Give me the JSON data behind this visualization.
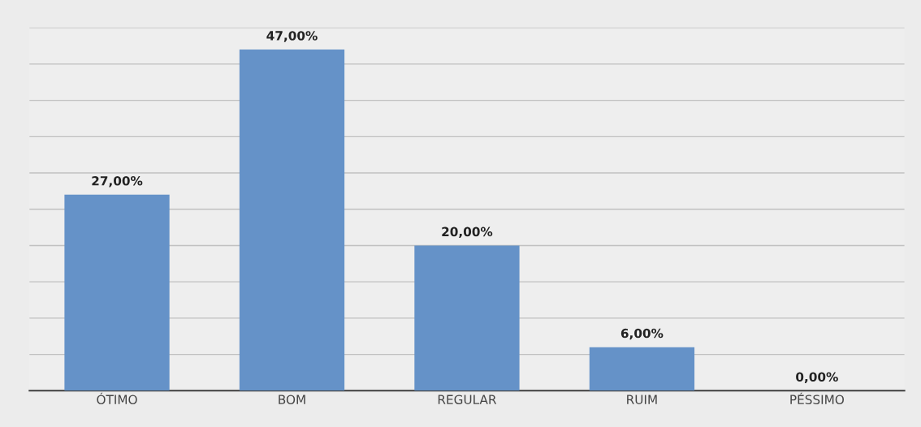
{
  "chart_data": {
    "type": "bar",
    "categories": [
      "ÓTIMO",
      "BOM",
      "REGULAR",
      "RUIM",
      "PÉSSIMO"
    ],
    "values": [
      27,
      47,
      20,
      6,
      0
    ],
    "value_labels": [
      "27,00%",
      "47,00%",
      "20,00%",
      "6,00%",
      "0,00%"
    ],
    "color": "#6592c8",
    "ylim": [
      0,
      50
    ],
    "yticks": [
      {
        "value": 0,
        "label": null
      },
      {
        "value": 5,
        "label": null
      },
      {
        "value": 10,
        "label": null
      },
      {
        "value": 15,
        "label": null
      },
      {
        "value": 20,
        "label": null
      },
      {
        "value": 25,
        "label": null
      },
      {
        "value": 30,
        "label": null
      },
      {
        "value": 35,
        "label": null
      },
      {
        "value": 40,
        "label": null
      },
      {
        "value": 45,
        "label": null
      },
      {
        "value": 50,
        "label": null
      }
    ],
    "tick_labels": "x",
    "grid": "y"
  }
}
